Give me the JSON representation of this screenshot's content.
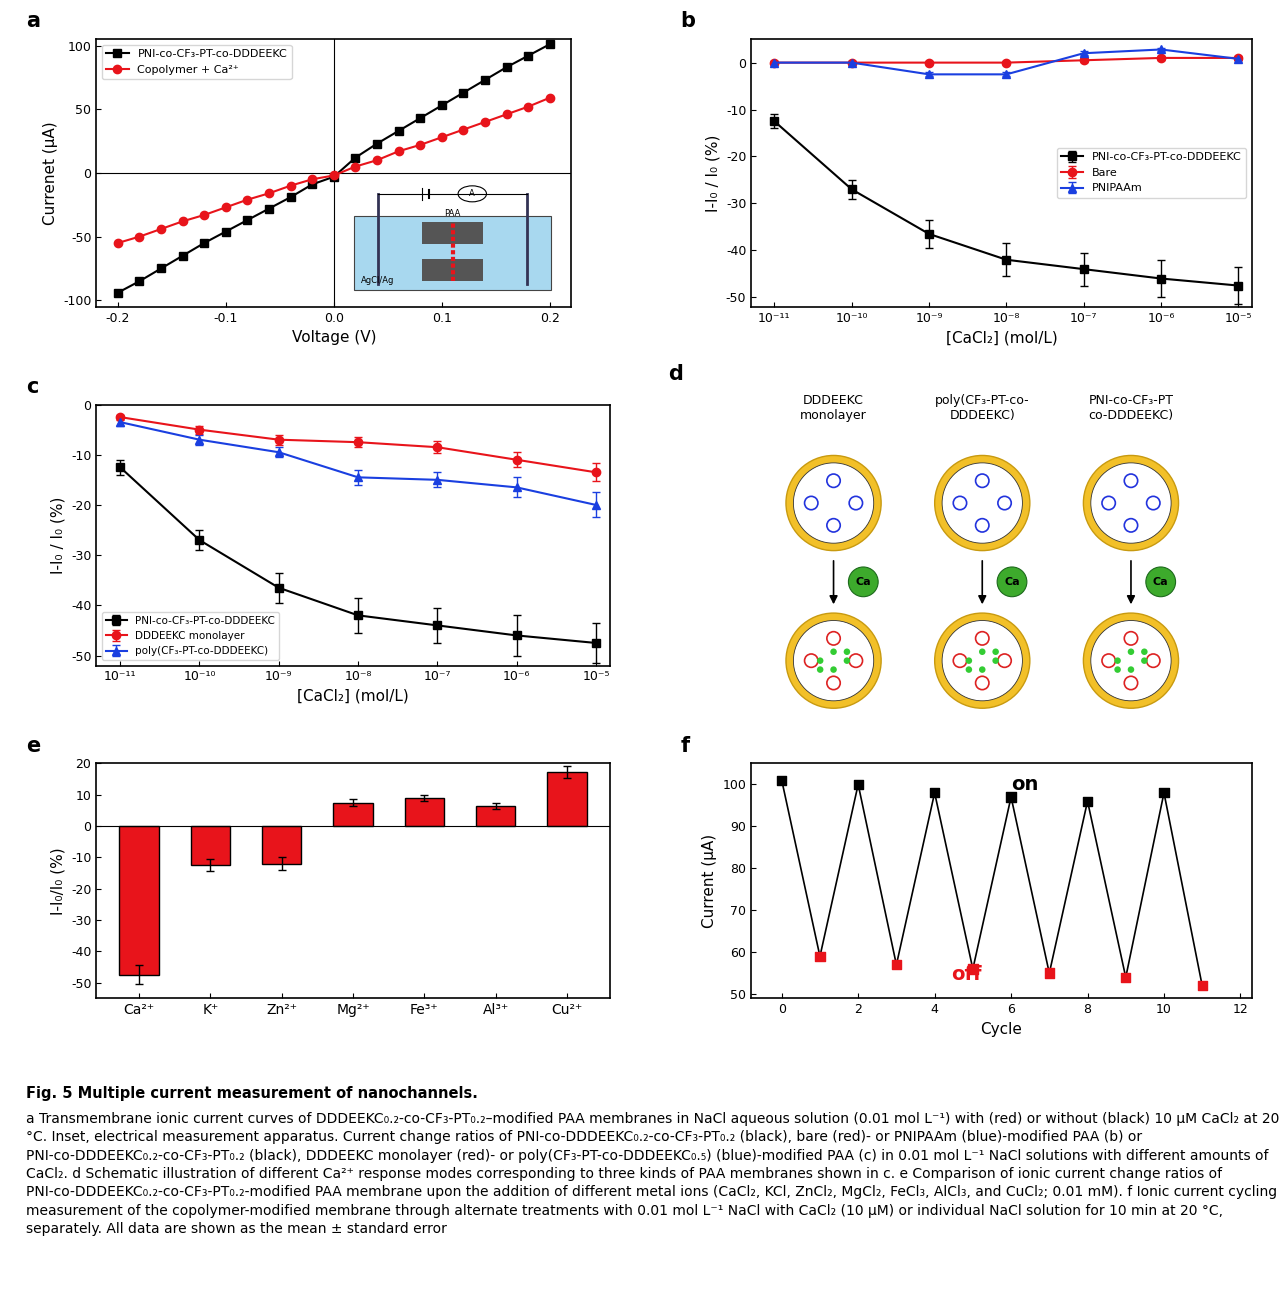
{
  "chart_data": [
    {
      "panel": "a",
      "type": "line",
      "x_label": "Voltage (V)",
      "y_label": "Currenet (μA)",
      "x": [
        -0.2,
        -0.18,
        -0.16,
        -0.14,
        -0.12,
        -0.1,
        -0.08,
        -0.06,
        -0.04,
        -0.02,
        0.0,
        0.02,
        0.04,
        0.06,
        0.08,
        0.1,
        0.12,
        0.14,
        0.16,
        0.18,
        0.2
      ],
      "series": [
        {
          "name": "PNI-co-CF₃-PT-co-DDDEEKC",
          "color": "#000000",
          "marker": "square",
          "values": [
            -94,
            -85,
            -75,
            -65,
            -55,
            -46,
            -37,
            -28,
            -19,
            -9,
            -3,
            12,
            23,
            33,
            43,
            53,
            63,
            73,
            83,
            92,
            101
          ]
        },
        {
          "name": "Copolymer + Ca²⁺",
          "color": "#e8141b",
          "marker": "circle",
          "values": [
            -55,
            -50,
            -44,
            -38,
            -33,
            -27,
            -21,
            -16,
            -10,
            -5,
            -2,
            5,
            10,
            17,
            22,
            28,
            34,
            40,
            46,
            52,
            59
          ]
        }
      ],
      "xlim": [
        -0.22,
        0.22
      ],
      "xticks": [
        -0.2,
        -0.1,
        0.0,
        0.1,
        0.2
      ],
      "ylim": [
        -105,
        105
      ],
      "yticks": [
        -100,
        -50,
        0,
        50,
        100
      ],
      "legend": "upper left",
      "inset": {
        "labels": [
          "PAA",
          "AgCl/Ag",
          "A"
        ]
      }
    },
    {
      "panel": "b",
      "type": "line",
      "log": "x",
      "x_label": "[CaCl₂] (mol/L)",
      "y_label": "I-I₀ / I₀ (%)",
      "x": [
        1e-11,
        1e-10,
        1e-09,
        1e-08,
        1e-07,
        1e-06,
        1e-05
      ],
      "series": [
        {
          "name": "PNI-co-CF₃-PT-co-DDDEEKC",
          "color": "#000000",
          "marker": "square",
          "values": [
            -12.5,
            -27,
            -36.5,
            -42,
            -44,
            -46,
            -47.5
          ],
          "errors": [
            1.5,
            2,
            3,
            3.5,
            3.5,
            4,
            4
          ]
        },
        {
          "name": "Bare",
          "color": "#e8141b",
          "marker": "circle",
          "values": [
            0,
            0,
            0,
            0,
            0.5,
            1,
            1
          ],
          "errors": [
            0.3,
            0.3,
            0.3,
            0.3,
            0.4,
            0.5,
            0.5
          ]
        },
        {
          "name": "PNIPAAm",
          "color": "#1a3fe0",
          "marker": "triangle",
          "values": [
            0,
            0,
            -2.5,
            -2.5,
            2,
            2.8,
            0.8
          ],
          "errors": [
            0.3,
            0.3,
            0.4,
            0.4,
            0.4,
            0.4,
            0.3
          ]
        }
      ],
      "xlim": [
        5e-12,
        1.5e-05
      ],
      "xticks": [
        {
          "value": 1e-11,
          "label": "10⁻¹¹"
        },
        {
          "value": 1e-10,
          "label": "10⁻¹⁰"
        },
        {
          "value": 1e-09,
          "label": "10⁻⁹"
        },
        {
          "value": 1e-08,
          "label": "10⁻⁸"
        },
        {
          "value": 1e-07,
          "label": "10⁻⁷"
        },
        {
          "value": 1e-06,
          "label": "10⁻⁶"
        },
        {
          "value": 1e-05,
          "label": "10⁻⁵"
        }
      ],
      "ylim": [
        -52,
        5
      ],
      "yticks": [
        -50,
        -40,
        -30,
        -20,
        -10,
        0
      ],
      "legend": "center right"
    },
    {
      "panel": "c",
      "type": "line",
      "log": "x",
      "x_label": "[CaCl₂] (mol/L)",
      "y_label": "I-I₀ / I₀ (%)",
      "x": [
        1e-11,
        1e-10,
        1e-09,
        1e-08,
        1e-07,
        1e-06,
        1e-05
      ],
      "series": [
        {
          "name": "PNI-co-CF₃-PT-co-DDDEEKC",
          "color": "#000000",
          "marker": "square",
          "values": [
            -12.5,
            -27,
            -36.5,
            -42,
            -44,
            -46,
            -47.5
          ],
          "errors": [
            1.5,
            2,
            3,
            3.5,
            3.5,
            4,
            4
          ]
        },
        {
          "name": "DDDEEKC monolayer",
          "color": "#e8141b",
          "marker": "circle",
          "values": [
            -2.5,
            -5,
            -7,
            -7.5,
            -8.5,
            -11,
            -13.5
          ],
          "errors": [
            0.5,
            0.8,
            1,
            1,
            1.2,
            1.5,
            1.8
          ]
        },
        {
          "name": "poly(CF₃-PT-co-DDDEEKC)",
          "color": "#1a3fe0",
          "marker": "triangle",
          "values": [
            -3.5,
            -7,
            -9.5,
            -14.5,
            -15,
            -16.5,
            -20
          ],
          "errors": [
            0.8,
            1,
            1,
            1.5,
            1.5,
            2,
            2.5
          ]
        }
      ],
      "xlim": [
        5e-12,
        1.5e-05
      ],
      "xticks": [
        {
          "value": 1e-11,
          "label": "10⁻¹¹"
        },
        {
          "value": 1e-10,
          "label": "10⁻¹⁰"
        },
        {
          "value": 1e-09,
          "label": "10⁻⁹"
        },
        {
          "value": 1e-08,
          "label": "10⁻⁸"
        },
        {
          "value": 1e-07,
          "label": "10⁻⁷"
        },
        {
          "value": 1e-06,
          "label": "10⁻⁶"
        },
        {
          "value": 1e-05,
          "label": "10⁻⁵"
        }
      ],
      "ylim": [
        -52,
        0
      ],
      "yticks": [
        -50,
        -40,
        -30,
        -20,
        -10,
        0
      ],
      "legend": "lower left"
    },
    {
      "panel": "d",
      "type": "diagram",
      "columns": [
        {
          "title": "DDDEEKC\nmonolayer",
          "ion": "Ca"
        },
        {
          "title": "poly(CF₃-PT-co-\nDDDEEKC)",
          "ion": "Ca"
        },
        {
          "title": "PNI-co-CF₃-PT\nco-DDDEEKC)",
          "ion": "Ca"
        }
      ]
    },
    {
      "panel": "e",
      "type": "bar",
      "y_label": "I-I₀/I₀ (%)",
      "categories": [
        "Ca²⁺",
        "K⁺",
        "Zn²⁺",
        "Mg²⁺",
        "Fe³⁺",
        "Al³⁺",
        "Cu²⁺"
      ],
      "values": [
        -47.5,
        -12.5,
        -12,
        7.5,
        9,
        6.3,
        17.2
      ],
      "errors": [
        3,
        2,
        2,
        1,
        1,
        1,
        2
      ],
      "color": "#e8141b",
      "ylim": [
        -55,
        20
      ],
      "yticks": [
        -50,
        -40,
        -30,
        -20,
        -10,
        0,
        10,
        20
      ]
    },
    {
      "panel": "f",
      "type": "line",
      "x_label": "Cycle",
      "y_label": "Current (μA)",
      "x": [
        0,
        1,
        2,
        3,
        4,
        5,
        6,
        7,
        8,
        9,
        10,
        11
      ],
      "values": [
        101,
        59,
        100,
        57,
        98,
        56,
        97,
        55,
        96,
        54,
        98,
        52
      ],
      "color": "#000000",
      "marker": "square",
      "colors": [
        "#000000",
        "#e8141b",
        "#000000",
        "#e8141b",
        "#000000",
        "#e8141b",
        "#000000",
        "#e8141b",
        "#000000",
        "#e8141b",
        "#000000",
        "#e8141b"
      ],
      "annotations": [
        {
          "text": "on",
          "color": "#000000"
        },
        {
          "text": "off",
          "color": "#e8141b"
        }
      ],
      "xlim": [
        -0.8,
        12.3
      ],
      "xticks": [
        0,
        2,
        4,
        6,
        8,
        10,
        12
      ],
      "ylim": [
        49,
        105
      ],
      "yticks": [
        50,
        60,
        70,
        80,
        90,
        100
      ]
    }
  ],
  "caption": {
    "title": "Fig. 5 Multiple current measurement of nanochannels.",
    "text": "a Transmembrane ionic current curves of DDDEEKC₀.₂-co-CF₃-PT₀.₂–modified PAA membranes in NaCl aqueous solution (0.01 mol L⁻¹) with (red) or without (black) 10 μM CaCl₂ at 20 °C. Inset, electrical measurement apparatus. Current change ratios of PNI-co-DDDEEKC₀.₂-co-CF₃-PT₀.₂ (black), bare (red)- or PNIPAAm (blue)-modified PAA (b) or PNI-co-DDDEEKC₀.₂-co-CF₃-PT₀.₂ (black), DDDEEKC monolayer (red)- or poly(CF₃-PT-co-DDDEEKC₀.₅) (blue)-modified PAA (c) in 0.01 mol L⁻¹ NaCl solutions with different amounts of CaCl₂. d Schematic illustration of different Ca²⁺ response modes corresponding to three kinds of PAA membranes shown in c. e Comparison of ionic current change ratios of PNI-co-DDDEEKC₀.₂-co-CF₃-PT₀.₂-modified PAA membrane upon the addition of different metal ions (CaCl₂, KCl, ZnCl₂, MgCl₂, FeCl₃, AlCl₃, and CuCl₂; 0.01 mM). f Ionic current cycling measurement of the copolymer-modified membrane through alternate treatments with 0.01 mol L⁻¹ NaCl with CaCl₂ (10 μM) or individual NaCl solution for 10 min at 20 °C, separately. All data are shown as the mean ± standard error"
  }
}
